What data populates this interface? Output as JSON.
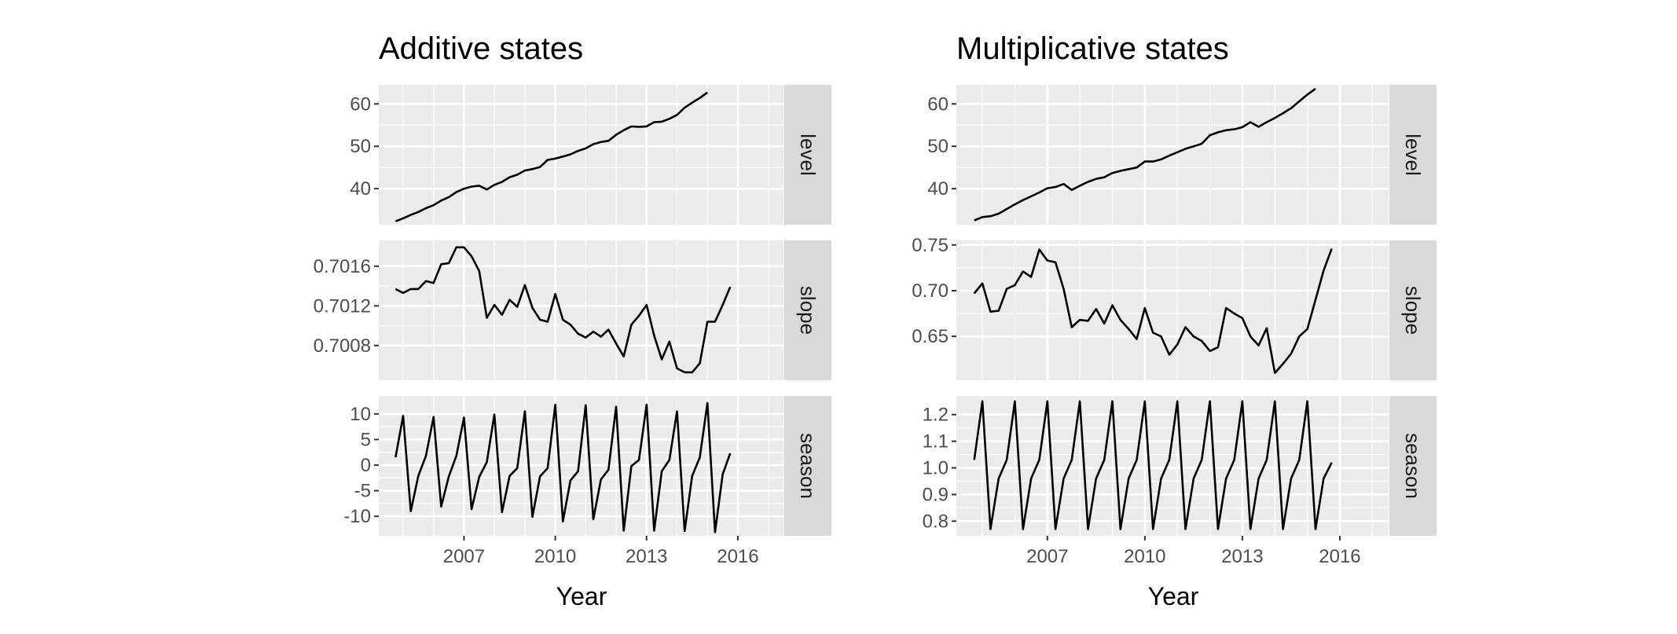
{
  "chart_data": [
    {
      "type": "line",
      "title": "Additive states",
      "xlabel": "Year",
      "x_ticks": [
        2007,
        2010,
        2013,
        2016
      ],
      "x_start": 2004.75,
      "x_step": 0.25,
      "xlim": [
        2004.2,
        2017.5
      ],
      "panels": [
        {
          "name": "level",
          "ylim": [
            31.5,
            64.5
          ],
          "y_ticks": [
            40,
            50,
            60
          ],
          "y_tick_labels": [
            "40",
            "50",
            "60"
          ],
          "values": [
            32.3,
            33.0,
            33.8,
            34.5,
            35.4,
            36.1,
            37.2,
            38.0,
            39.2,
            40.0,
            40.5,
            40.7,
            39.8,
            40.9,
            41.6,
            42.7,
            43.3,
            44.3,
            44.6,
            45.1,
            46.8,
            47.1,
            47.6,
            48.1,
            48.9,
            49.5,
            50.5,
            51.0,
            51.3,
            52.7,
            53.8,
            54.7,
            54.6,
            54.7,
            55.7,
            55.8,
            56.5,
            57.4,
            59.1,
            60.3,
            61.4,
            62.7
          ]
        },
        {
          "name": "slope",
          "ylim": [
            0.70045,
            0.70186
          ],
          "y_ticks": [
            0.7008,
            0.7012,
            0.7016
          ],
          "y_tick_labels": [
            "0.7008",
            "0.7012",
            "0.7016"
          ],
          "values": [
            0.70137,
            0.70133,
            0.70137,
            0.70137,
            0.70145,
            0.70143,
            0.70162,
            0.70163,
            0.70179,
            0.70179,
            0.7017,
            0.70155,
            0.70108,
            0.70121,
            0.70111,
            0.70126,
            0.70119,
            0.70141,
            0.70118,
            0.70106,
            0.70104,
            0.70132,
            0.70106,
            0.70101,
            0.70092,
            0.70088,
            0.70094,
            0.70089,
            0.70096,
            0.70082,
            0.70069,
            0.70101,
            0.7011,
            0.70121,
            0.7009,
            0.70066,
            0.70084,
            0.70057,
            0.70053,
            0.70053,
            0.70062,
            0.70104,
            0.70104,
            0.70121,
            0.70139
          ]
        },
        {
          "name": "season",
          "ylim": [
            -13.8,
            13.5
          ],
          "y_ticks": [
            -10,
            -5,
            0,
            5,
            10
          ],
          "y_tick_labels": [
            "-10",
            "-5",
            "0",
            "5",
            "10"
          ],
          "values": [
            1.5,
            9.6,
            -9.0,
            -2.1,
            1.8,
            9.4,
            -8.1,
            -2.2,
            1.8,
            9.3,
            -8.6,
            -2.3,
            0.6,
            9.9,
            -9.2,
            -2.1,
            -0.6,
            10.5,
            -10.1,
            -2.2,
            -0.6,
            11.8,
            -11.0,
            -3.0,
            -1.2,
            11.7,
            -10.6,
            -2.8,
            -0.9,
            11.4,
            -12.8,
            -0.2,
            1.0,
            11.8,
            -12.8,
            -1.2,
            1.0,
            10.5,
            -12.9,
            -2.1,
            1.5,
            12.1,
            -13.1,
            -1.8,
            2.3
          ]
        }
      ]
    },
    {
      "type": "line",
      "title": "Multiplicative states",
      "xlabel": "Year",
      "x_ticks": [
        2007,
        2010,
        2013,
        2016
      ],
      "x_start": 2004.75,
      "x_step": 0.25,
      "xlim": [
        2004.2,
        2017.5
      ],
      "panels": [
        {
          "name": "level",
          "ylim": [
            31.5,
            64.5
          ],
          "y_ticks": [
            40,
            50,
            60
          ],
          "y_tick_labels": [
            "40",
            "50",
            "60"
          ],
          "values": [
            32.5,
            33.3,
            33.5,
            34.1,
            35.2,
            36.3,
            37.3,
            38.2,
            39.1,
            40.1,
            40.4,
            41.1,
            39.7,
            40.7,
            41.6,
            42.3,
            42.7,
            43.7,
            44.2,
            44.6,
            45.0,
            46.4,
            46.4,
            46.9,
            47.8,
            48.6,
            49.4,
            50.0,
            50.6,
            52.6,
            53.3,
            53.8,
            54.0,
            54.5,
            55.7,
            54.6,
            55.7,
            56.7,
            57.8,
            59.0,
            60.6,
            62.2,
            63.6
          ]
        },
        {
          "name": "slope",
          "ylim": [
            0.602,
            0.755
          ],
          "y_ticks": [
            0.65,
            0.7,
            0.75
          ],
          "y_tick_labels": [
            "0.65",
            "0.70",
            "0.75"
          ],
          "values": [
            0.697,
            0.708,
            0.677,
            0.678,
            0.702,
            0.706,
            0.721,
            0.715,
            0.745,
            0.733,
            0.731,
            0.702,
            0.66,
            0.668,
            0.667,
            0.68,
            0.664,
            0.684,
            0.668,
            0.658,
            0.647,
            0.681,
            0.654,
            0.65,
            0.63,
            0.641,
            0.66,
            0.65,
            0.645,
            0.634,
            0.638,
            0.681,
            0.675,
            0.67,
            0.65,
            0.64,
            0.659,
            0.61,
            0.62,
            0.631,
            0.65,
            0.658,
            0.69,
            0.722,
            0.746
          ]
        },
        {
          "name": "season",
          "ylim": [
            0.745,
            1.27
          ],
          "y_ticks": [
            0.8,
            0.9,
            1.0,
            1.1,
            1.2
          ],
          "y_tick_labels": [
            "0.8",
            "0.9",
            "1.0",
            "1.1",
            "1.2"
          ],
          "values": [
            1.03,
            1.25,
            0.77,
            0.96,
            1.03,
            1.25,
            0.77,
            0.96,
            1.03,
            1.25,
            0.77,
            0.96,
            1.03,
            1.25,
            0.77,
            0.96,
            1.03,
            1.25,
            0.77,
            0.96,
            1.03,
            1.25,
            0.77,
            0.96,
            1.03,
            1.25,
            0.77,
            0.96,
            1.03,
            1.25,
            0.77,
            0.96,
            1.03,
            1.25,
            0.77,
            0.96,
            1.03,
            1.25,
            0.77,
            0.96,
            1.03,
            1.25,
            0.77,
            0.96,
            1.02
          ]
        }
      ]
    }
  ]
}
